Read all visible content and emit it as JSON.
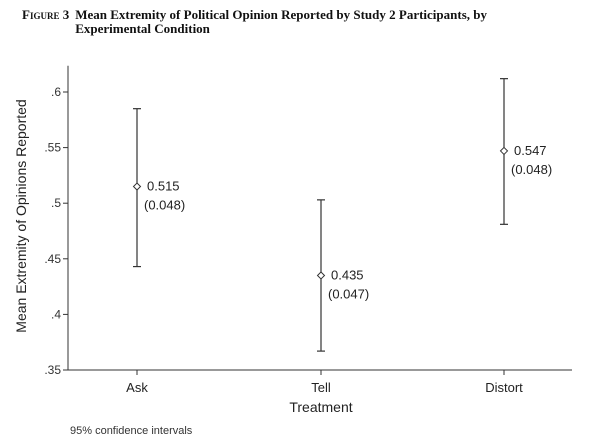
{
  "caption": {
    "label": "Figure 3",
    "title": "Mean Extremity of Political Opinion Reported by Study 2 Participants, by Experimental Condition"
  },
  "chart_data": {
    "type": "scatter",
    "subtype": "error-bar",
    "title": "",
    "xlabel": "Treatment",
    "ylabel": "Mean Extremity of Opinions Reported",
    "categories": [
      "Ask",
      "Tell",
      "Distort"
    ],
    "means": [
      0.515,
      0.435,
      0.547
    ],
    "se_labels": [
      "(0.048)",
      "(0.047)",
      "(0.048)"
    ],
    "mean_labels": [
      "0.515",
      "0.435",
      "0.547"
    ],
    "ci_low": [
      0.443,
      0.367,
      0.481
    ],
    "ci_high": [
      0.585,
      0.503,
      0.612
    ],
    "ylim": [
      0.35,
      0.62
    ],
    "yticks": [
      0.35,
      0.4,
      0.45,
      0.5,
      0.55,
      0.6
    ],
    "ytick_labels": [
      ".35",
      ".4",
      ".45",
      ".5",
      ".55",
      ".6"
    ],
    "grid": false,
    "note": "95% confidence intervals"
  }
}
